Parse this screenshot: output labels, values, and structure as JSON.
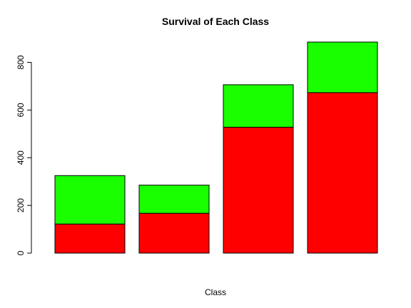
{
  "chart_data": {
    "type": "bar",
    "stacked": true,
    "title": "Survival of Each Class",
    "xlabel": "Class",
    "ylabel": "",
    "ylim": [
      0,
      885
    ],
    "y_ticks": [
      0,
      200,
      400,
      600,
      800
    ],
    "categories": [
      "",
      "",
      "",
      ""
    ],
    "series": [
      {
        "values": [
          122,
          167,
          528,
          673
        ],
        "color": "#ff0000"
      },
      {
        "values": [
          203,
          118,
          178,
          212
        ],
        "color": "#1aff00"
      }
    ],
    "grid": false,
    "legend": "none"
  }
}
